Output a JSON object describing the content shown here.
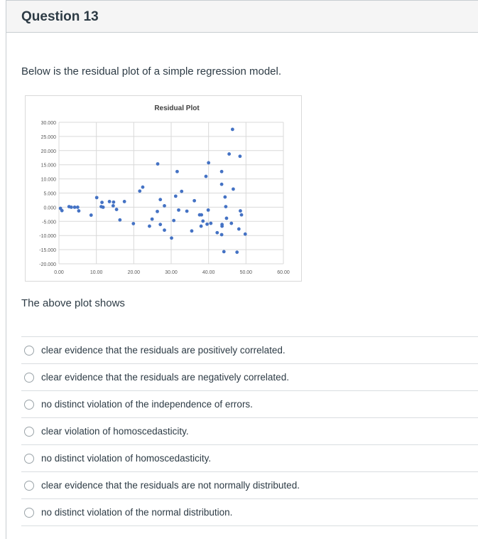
{
  "question": {
    "title": "Question 13",
    "text": "Below is the residual plot of a simple regression model.",
    "prompt": "The above plot shows",
    "options": [
      "clear evidence that the residuals are positively correlated.",
      "clear evidence that the residuals are negatively correlated.",
      "no distinct violation of the independence of errors.",
      "clear violation of homoscedasticity.",
      "no distinct violation of homoscedasticity.",
      "clear evidence that the residuals are not normally distributed.",
      "no distinct violation of the normal distribution."
    ]
  },
  "chart_data": {
    "type": "scatter",
    "title": "Residual Plot",
    "xlabel": "",
    "ylabel": "",
    "xlim": [
      0,
      60
    ],
    "ylim": [
      -20,
      30
    ],
    "xticks": [
      "0.00",
      "10.00",
      "20.00",
      "30.00",
      "40.00",
      "50.00",
      "60.00"
    ],
    "yticks": [
      "30.000",
      "25.000",
      "20.000",
      "15.000",
      "10.000",
      "5.000",
      "0.000",
      "-5.000",
      "-10.000",
      "-15.000",
      "-20.000"
    ],
    "grid": true,
    "color": "#4472c4",
    "points": [
      [
        0.4,
        -0.4
      ],
      [
        0.8,
        -1.2
      ],
      [
        2.7,
        0.2
      ],
      [
        3.3,
        0
      ],
      [
        4.2,
        0
      ],
      [
        5.0,
        0
      ],
      [
        5.3,
        -1.3
      ],
      [
        8.6,
        -2.8
      ],
      [
        10.1,
        3.4
      ],
      [
        11.5,
        1.7
      ],
      [
        11.3,
        0.2
      ],
      [
        11.8,
        0
      ],
      [
        13.5,
        2.0
      ],
      [
        14.6,
        1.8
      ],
      [
        14.5,
        0.5
      ],
      [
        15.4,
        -0.8
      ],
      [
        16.3,
        -4.5
      ],
      [
        17.5,
        2.0
      ],
      [
        19.9,
        -5.8
      ],
      [
        21.6,
        5.7
      ],
      [
        22.4,
        7.1
      ],
      [
        24.2,
        -6.7
      ],
      [
        24.9,
        -4.2
      ],
      [
        26.4,
        15.3
      ],
      [
        27.1,
        2.7
      ],
      [
        28.2,
        0.5
      ],
      [
        26.3,
        -1.5
      ],
      [
        27.1,
        -6.1
      ],
      [
        28.2,
        -8.1
      ],
      [
        30.1,
        -10.9
      ],
      [
        30.7,
        -4.7
      ],
      [
        31.2,
        3.9
      ],
      [
        31.6,
        12.6
      ],
      [
        32.0,
        -1.0
      ],
      [
        32.8,
        5.6
      ],
      [
        34.2,
        -1.4
      ],
      [
        35.5,
        -8.4
      ],
      [
        36.2,
        2.3
      ],
      [
        37.6,
        -2.7
      ],
      [
        38.1,
        -2.7
      ],
      [
        38.0,
        -6.7
      ],
      [
        38.5,
        -4.9
      ],
      [
        39.3,
        10.9
      ],
      [
        39.6,
        -6.0
      ],
      [
        39.9,
        -1.0
      ],
      [
        40.0,
        15.7
      ],
      [
        40.6,
        -5.7
      ],
      [
        42.3,
        -9.0
      ],
      [
        43.5,
        12.6
      ],
      [
        43.5,
        8.1
      ],
      [
        43.5,
        -9.7
      ],
      [
        43.6,
        -6.1
      ],
      [
        43.6,
        -6.7
      ],
      [
        44.1,
        -15.7
      ],
      [
        44.4,
        3.6
      ],
      [
        44.6,
        0.2
      ],
      [
        44.8,
        -3.9
      ],
      [
        45.5,
        18.8
      ],
      [
        46.1,
        -5.7
      ],
      [
        46.4,
        27.5
      ],
      [
        46.6,
        6.4
      ],
      [
        47.6,
        -15.9
      ],
      [
        48.1,
        -7.7
      ],
      [
        48.4,
        18.0
      ],
      [
        48.5,
        -1.3
      ],
      [
        48.8,
        -2.7
      ],
      [
        49.8,
        -9.5
      ]
    ]
  }
}
